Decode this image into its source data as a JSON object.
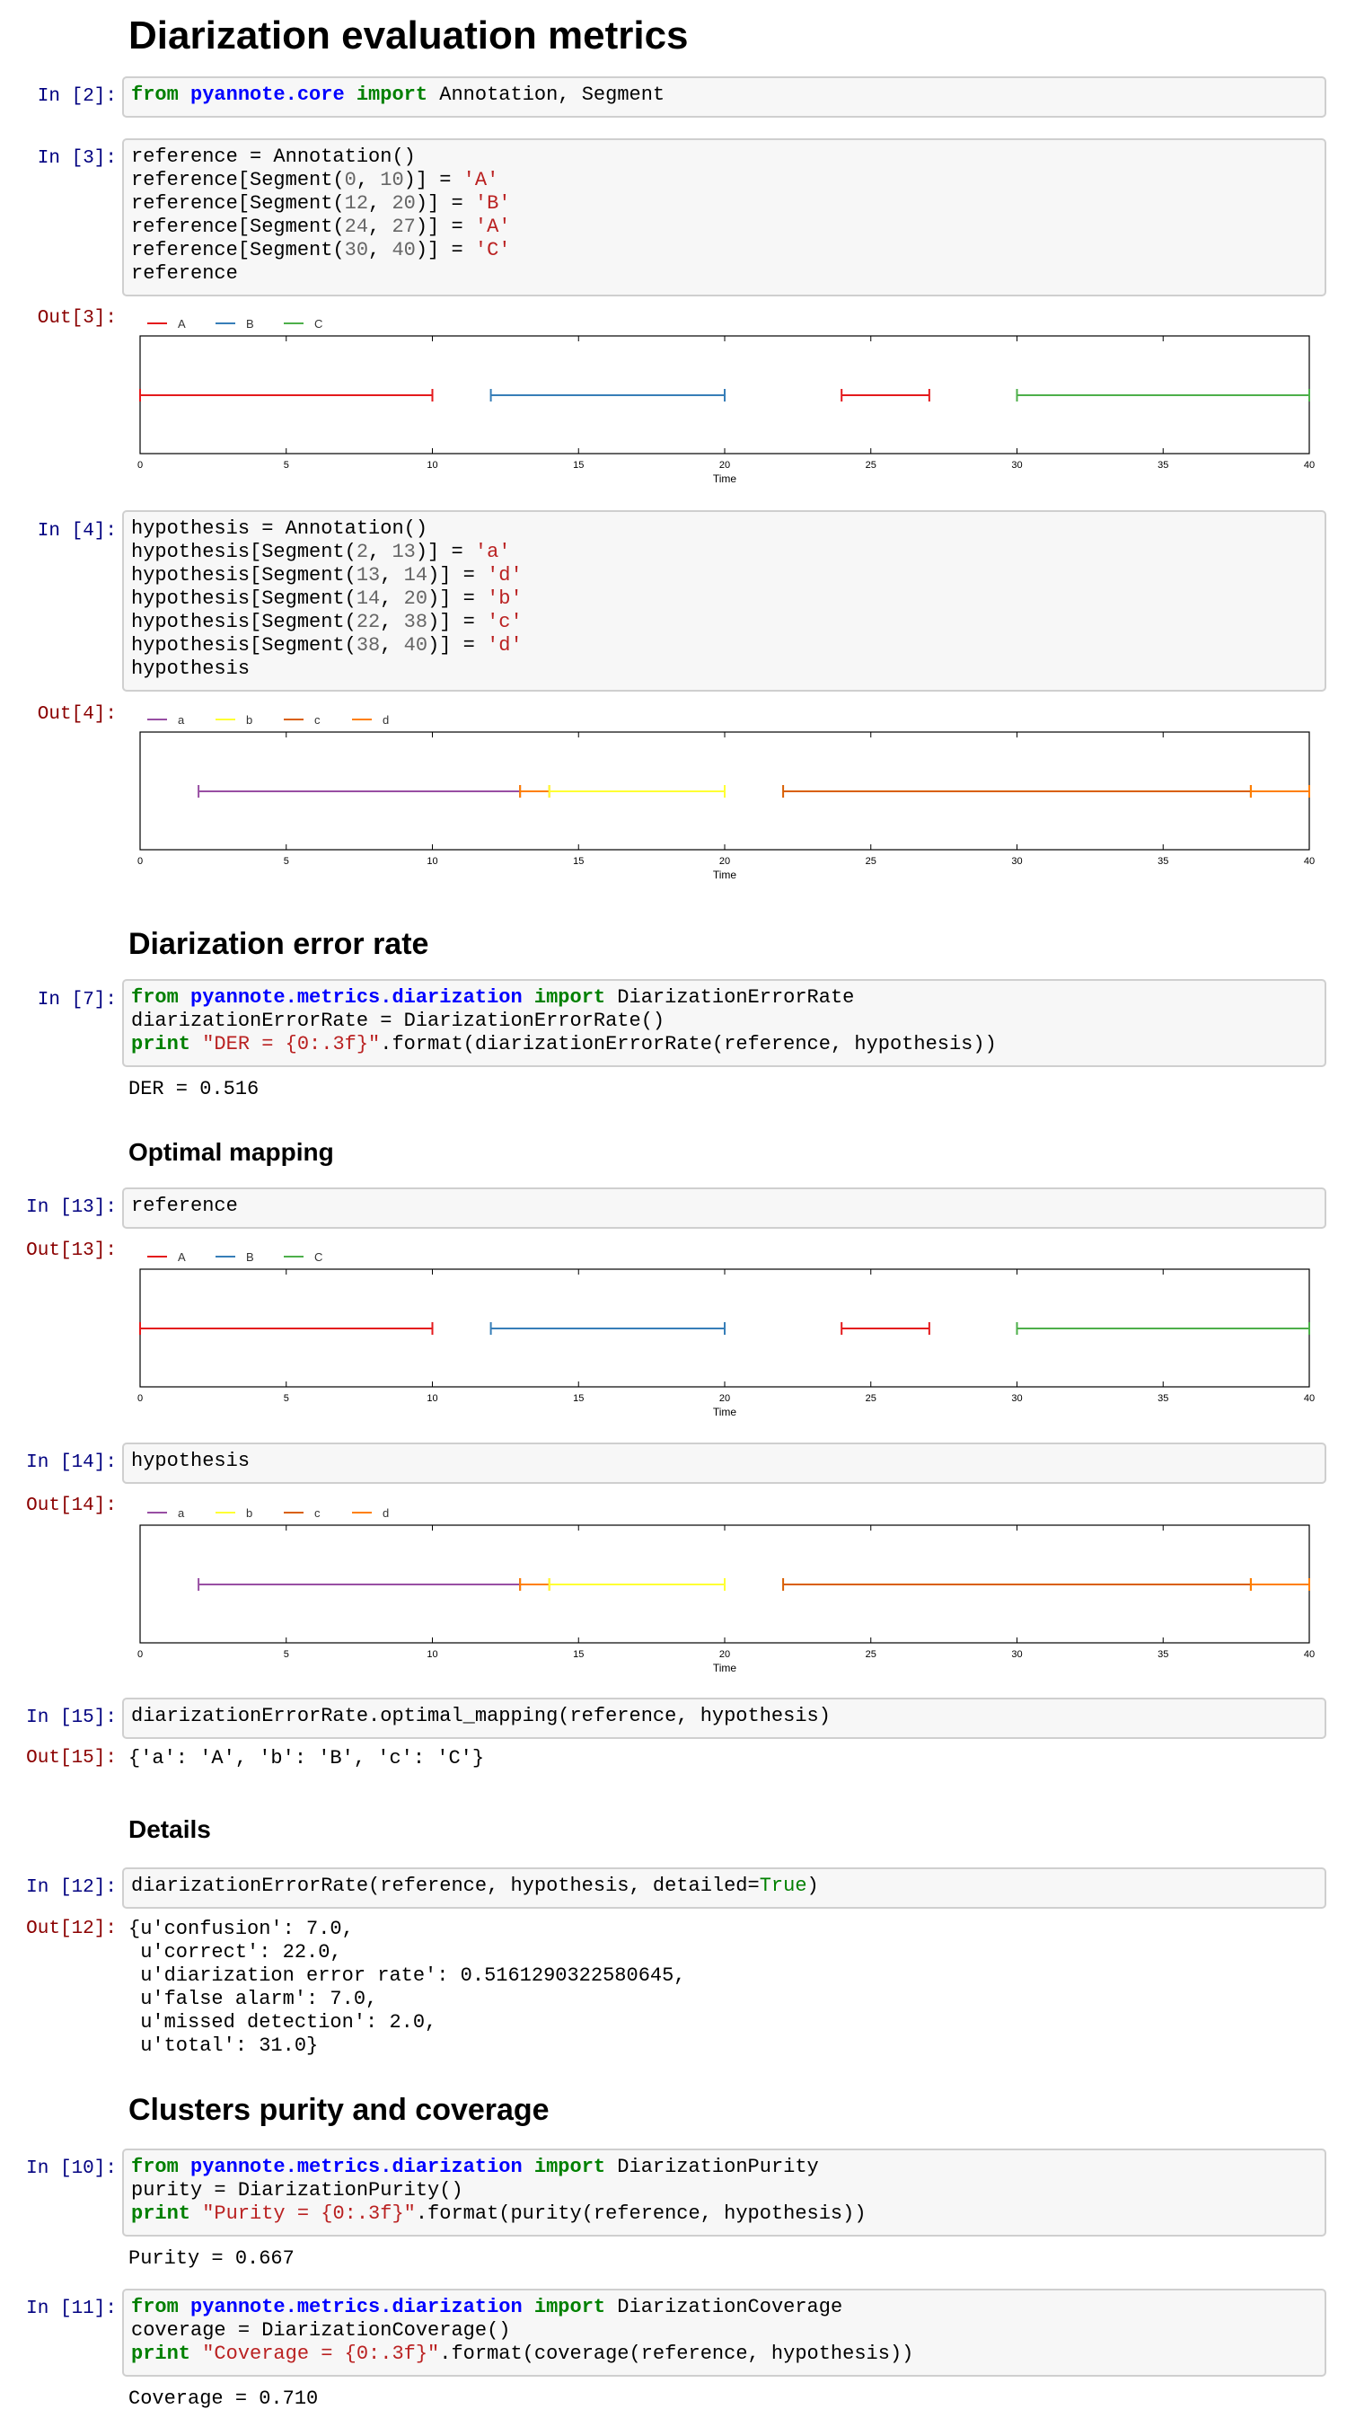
{
  "title": "Diarization evaluation metrics",
  "headings": {
    "der": "Diarization error rate",
    "mapping": "Optimal mapping",
    "details": "Details",
    "purity": "Clusters purity and coverage"
  },
  "prompts": {
    "in2": "In [2]:",
    "in3": "In [3]:",
    "out3": "Out[3]:",
    "in4": "In [4]:",
    "out4": "Out[4]:",
    "in7": "In [7]:",
    "in13": "In [13]:",
    "out13": "Out[13]:",
    "in14": "In [14]:",
    "out14": "Out[14]:",
    "in15": "In [15]:",
    "out15": "Out[15]:",
    "in12": "In [12]:",
    "out12": "Out[12]:",
    "in10": "In [10]:",
    "in11": "In [11]:"
  },
  "code": {
    "c2": [
      [
        "kw",
        "from"
      ],
      [
        "t",
        " "
      ],
      [
        "ns",
        "pyannote.core"
      ],
      [
        "t",
        " "
      ],
      [
        "kw",
        "import"
      ],
      [
        "t",
        " Annotation, Segment"
      ]
    ],
    "c3": [
      [
        [
          "t",
          "reference = Annotation()"
        ]
      ],
      [
        [
          "t",
          "reference[Segment("
        ],
        [
          "num",
          "0"
        ],
        [
          "t",
          ", "
        ],
        [
          "num",
          "10"
        ],
        [
          "t",
          ")] = "
        ],
        [
          "str",
          "'A'"
        ]
      ],
      [
        [
          "t",
          "reference[Segment("
        ],
        [
          "num",
          "12"
        ],
        [
          "t",
          ", "
        ],
        [
          "num",
          "20"
        ],
        [
          "t",
          ")] = "
        ],
        [
          "str",
          "'B'"
        ]
      ],
      [
        [
          "t",
          "reference[Segment("
        ],
        [
          "num",
          "24"
        ],
        [
          "t",
          ", "
        ],
        [
          "num",
          "27"
        ],
        [
          "t",
          ")] = "
        ],
        [
          "str",
          "'A'"
        ]
      ],
      [
        [
          "t",
          "reference[Segment("
        ],
        [
          "num",
          "30"
        ],
        [
          "t",
          ", "
        ],
        [
          "num",
          "40"
        ],
        [
          "t",
          ")] = "
        ],
        [
          "str",
          "'C'"
        ]
      ],
      [
        [
          "t",
          "reference"
        ]
      ]
    ],
    "c4": [
      [
        [
          "t",
          "hypothesis = Annotation()"
        ]
      ],
      [
        [
          "t",
          "hypothesis[Segment("
        ],
        [
          "num",
          "2"
        ],
        [
          "t",
          ", "
        ],
        [
          "num",
          "13"
        ],
        [
          "t",
          ")] = "
        ],
        [
          "str",
          "'a'"
        ]
      ],
      [
        [
          "t",
          "hypothesis[Segment("
        ],
        [
          "num",
          "13"
        ],
        [
          "t",
          ", "
        ],
        [
          "num",
          "14"
        ],
        [
          "t",
          ")] = "
        ],
        [
          "str",
          "'d'"
        ]
      ],
      [
        [
          "t",
          "hypothesis[Segment("
        ],
        [
          "num",
          "14"
        ],
        [
          "t",
          ", "
        ],
        [
          "num",
          "20"
        ],
        [
          "t",
          ")] = "
        ],
        [
          "str",
          "'b'"
        ]
      ],
      [
        [
          "t",
          "hypothesis[Segment("
        ],
        [
          "num",
          "22"
        ],
        [
          "t",
          ", "
        ],
        [
          "num",
          "38"
        ],
        [
          "t",
          ")] = "
        ],
        [
          "str",
          "'c'"
        ]
      ],
      [
        [
          "t",
          "hypothesis[Segment("
        ],
        [
          "num",
          "38"
        ],
        [
          "t",
          ", "
        ],
        [
          "num",
          "40"
        ],
        [
          "t",
          ")] = "
        ],
        [
          "str",
          "'d'"
        ]
      ],
      [
        [
          "t",
          "hypothesis"
        ]
      ]
    ],
    "c7": [
      [
        [
          "kw",
          "from"
        ],
        [
          "t",
          " "
        ],
        [
          "ns",
          "pyannote.metrics.diarization"
        ],
        [
          "t",
          " "
        ],
        [
          "kw",
          "import"
        ],
        [
          "t",
          " DiarizationErrorRate"
        ]
      ],
      [
        [
          "t",
          "diarizationErrorRate = DiarizationErrorRate()"
        ]
      ],
      [
        [
          "kw",
          "print"
        ],
        [
          "t",
          " "
        ],
        [
          "str",
          "\"DER = {0:.3f}\""
        ],
        [
          "t",
          ".format(diarizationErrorRate(reference, hypothesis))"
        ]
      ]
    ],
    "c13": [
      [
        [
          "t",
          "reference"
        ]
      ]
    ],
    "c14": [
      [
        [
          "t",
          "hypothesis"
        ]
      ]
    ],
    "c15": [
      [
        [
          "t",
          "diarizationErrorRate.optimal_mapping(reference, hypothesis)"
        ]
      ]
    ],
    "c12": [
      [
        [
          "t",
          "diarizationErrorRate(reference, hypothesis, detailed="
        ],
        [
          "bi",
          "True"
        ],
        [
          "t",
          ")"
        ]
      ]
    ],
    "c10": [
      [
        [
          "kw",
          "from"
        ],
        [
          "t",
          " "
        ],
        [
          "ns",
          "pyannote.metrics.diarization"
        ],
        [
          "t",
          " "
        ],
        [
          "kw",
          "import"
        ],
        [
          "t",
          " DiarizationPurity"
        ]
      ],
      [
        [
          "t",
          "purity = DiarizationPurity()"
        ]
      ],
      [
        [
          "kw",
          "print"
        ],
        [
          "t",
          " "
        ],
        [
          "str",
          "\"Purity = {0:.3f}\""
        ],
        [
          "t",
          ".format(purity(reference, hypothesis))"
        ]
      ]
    ],
    "c11": [
      [
        [
          "kw",
          "from"
        ],
        [
          "t",
          " "
        ],
        [
          "ns",
          "pyannote.metrics.diarization"
        ],
        [
          "t",
          " "
        ],
        [
          "kw",
          "import"
        ],
        [
          "t",
          " DiarizationCoverage"
        ]
      ],
      [
        [
          "t",
          "coverage = DiarizationCoverage()"
        ]
      ],
      [
        [
          "kw",
          "print"
        ],
        [
          "t",
          " "
        ],
        [
          "str",
          "\"Coverage = {0:.3f}\""
        ],
        [
          "t",
          ".format(coverage(reference, hypothesis))"
        ]
      ]
    ]
  },
  "outputs": {
    "der": "DER = 0.516",
    "mapping": "{'a': 'A', 'b': 'B', 'c': 'C'}",
    "details": "{u'confusion': 7.0,\n u'correct': 22.0,\n u'diarization error rate': 0.5161290322580645,\n u'false alarm': 7.0,\n u'missed detection': 2.0,\n u'total': 31.0}",
    "purity": "Purity = 0.667",
    "coverage": "Coverage = 0.710"
  },
  "chart_data": [
    {
      "type": "timeline",
      "xlabel": "Time",
      "xlim": [
        0,
        40
      ],
      "xticks": [
        0,
        5,
        10,
        15,
        20,
        25,
        30,
        35,
        40
      ],
      "legend": [
        {
          "label": "A",
          "color": "#e41a1c"
        },
        {
          "label": "B",
          "color": "#377eb8"
        },
        {
          "label": "C",
          "color": "#4daf4a"
        }
      ],
      "legend_placement": "top-left",
      "segments": [
        {
          "label": "A",
          "start": 0,
          "end": 10
        },
        {
          "label": "B",
          "start": 12,
          "end": 20
        },
        {
          "label": "A",
          "start": 24,
          "end": 27
        },
        {
          "label": "C",
          "start": 30,
          "end": 40
        }
      ]
    },
    {
      "type": "timeline",
      "xlabel": "Time",
      "xlim": [
        0,
        40
      ],
      "xticks": [
        0,
        5,
        10,
        15,
        20,
        25,
        30,
        35,
        40
      ],
      "legend": [
        {
          "label": "a",
          "color": "#984ea3"
        },
        {
          "label": "b",
          "color": "#ffff33"
        },
        {
          "label": "c",
          "color": "#d95f02"
        },
        {
          "label": "d",
          "color": "#ff7f00"
        }
      ],
      "legend_placement": "top-left",
      "segments": [
        {
          "label": "a",
          "start": 2,
          "end": 13
        },
        {
          "label": "d",
          "start": 13,
          "end": 14
        },
        {
          "label": "b",
          "start": 14,
          "end": 20
        },
        {
          "label": "c",
          "start": 22,
          "end": 38
        },
        {
          "label": "d",
          "start": 38,
          "end": 40
        }
      ]
    }
  ]
}
